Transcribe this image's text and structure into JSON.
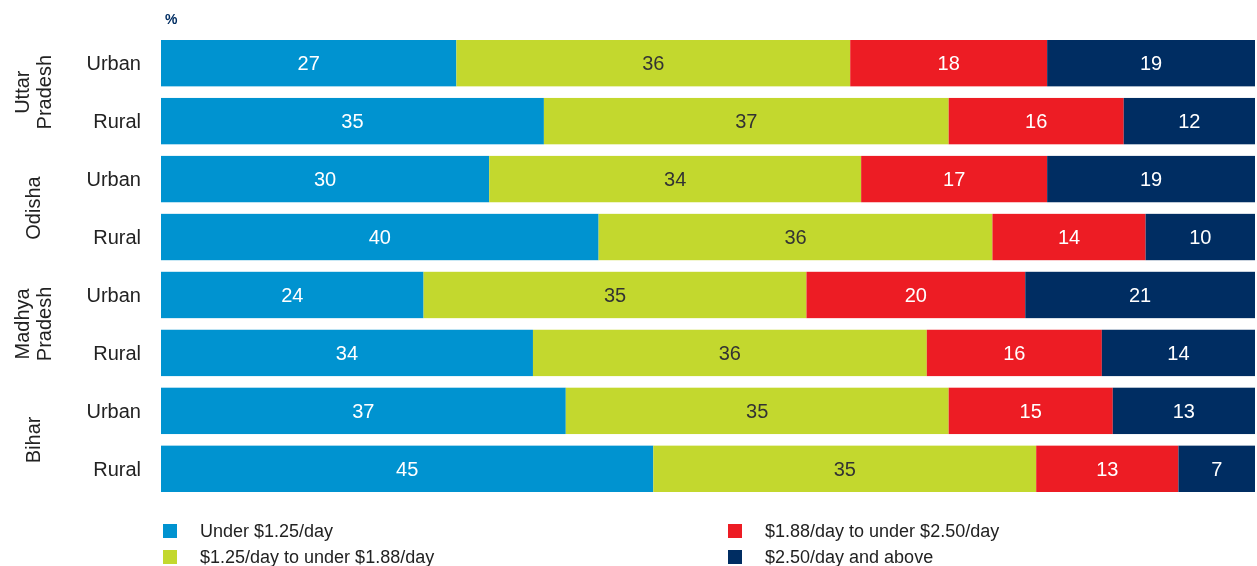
{
  "chart_data": {
    "type": "bar",
    "orientation": "horizontal",
    "stacked": true,
    "data_labels": true,
    "legend": "bottom",
    "xlabel": "%",
    "categories": [
      "Urban",
      "Rural",
      "Urban",
      "Rural",
      "Urban",
      "Rural",
      "Urban",
      "Rural"
    ],
    "annotations": [
      "Uttar Pradesh",
      "Odisha",
      "Madhya Pradesh",
      "Bihar"
    ],
    "series": [
      {
        "name": "Under $1.25/day",
        "color": "#0093d0",
        "values": [
          27,
          35,
          30,
          40,
          24,
          34,
          37,
          45
        ]
      },
      {
        "name": "$1.25/day to under $1.88/day",
        "color": "#c3d82e",
        "values": [
          36,
          37,
          34,
          36,
          35,
          36,
          35,
          35
        ]
      },
      {
        "name": "$1.88/day to under $2.50/day",
        "color": "#ed1c24",
        "values": [
          18,
          16,
          17,
          14,
          20,
          16,
          15,
          13
        ]
      },
      {
        "name": "$2.50/day and above",
        "color": "#002d62",
        "values": [
          19,
          12,
          19,
          10,
          21,
          14,
          13,
          7
        ]
      }
    ]
  }
}
